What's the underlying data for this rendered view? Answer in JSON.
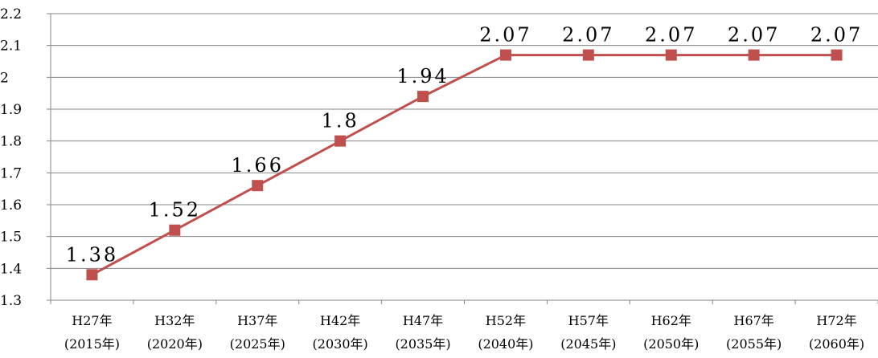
{
  "chart_data": {
    "type": "line",
    "title": "",
    "xlabel": "",
    "ylabel": "",
    "ylim": [
      1.3,
      2.2
    ],
    "yticks": [
      "1.3",
      "1.4",
      "1.5",
      "1.6",
      "1.7",
      "1.8",
      "1.9",
      "2",
      "2.1",
      "2.2"
    ],
    "grid": true,
    "legend": "none",
    "categories": [
      {
        "line1": "H27年",
        "line2": "(2015年)"
      },
      {
        "line1": "H32年",
        "line2": "(2020年)"
      },
      {
        "line1": "H37年",
        "line2": "(2025年)"
      },
      {
        "line1": "H42年",
        "line2": "(2030年)"
      },
      {
        "line1": "H47年",
        "line2": "(2035年)"
      },
      {
        "line1": "H52年",
        "line2": "(2040年)"
      },
      {
        "line1": "H57年",
        "line2": "(2045年)"
      },
      {
        "line1": "H62年",
        "line2": "(2050年)"
      },
      {
        "line1": "H67年",
        "line2": "(2055年)"
      },
      {
        "line1": "H72年",
        "line2": "(2060年)"
      }
    ],
    "series": [
      {
        "values": [
          1.38,
          1.52,
          1.66,
          1.8,
          1.94,
          2.07,
          2.07,
          2.07,
          2.07,
          2.07
        ],
        "labels": [
          "1.38",
          "1.52",
          "1.66",
          "1.8",
          "1.94",
          "2.07",
          "2.07",
          "2.07",
          "2.07",
          "2.07"
        ],
        "color": "#c0504d",
        "marker": "square"
      }
    ],
    "grid_color": "#868686",
    "axis_color": "#868686"
  }
}
